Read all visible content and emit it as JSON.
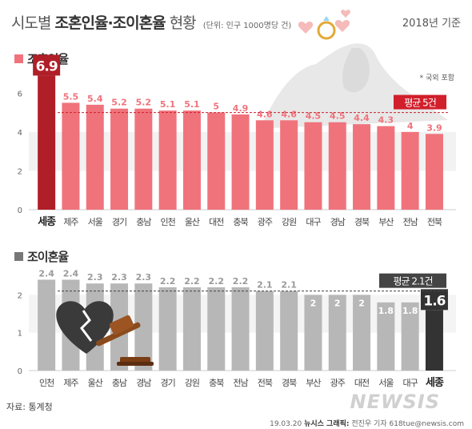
{
  "header": {
    "title_light": "시도별",
    "title_bold": "조혼인율·조이혼율",
    "title_tail": "현황",
    "unit": "(단위: 인구 1000명당 건)",
    "year": "2018년 기준"
  },
  "footer": {
    "source": "자료: 통계청",
    "date": "19.03.20",
    "agency": "뉴시스 그래픽:",
    "author": "전진우 기자 618tue@newsis.com",
    "logo": "NEWSIS"
  },
  "colors": {
    "marriage_bar": "#f0737c",
    "marriage_highlight": "#b01f28",
    "divorce_bar": "#b7b7b7",
    "divorce_highlight": "#333333",
    "avg_line": "#d11f2b"
  },
  "chart_data": [
    {
      "type": "bar",
      "section_label": "조혼인율",
      "note": "* 국외 포함",
      "categories": [
        "세종",
        "제주",
        "서울",
        "경기",
        "충남",
        "인천",
        "울산",
        "대전",
        "충북",
        "광주",
        "강원",
        "대구",
        "경남",
        "경북",
        "부산",
        "전남",
        "전북"
      ],
      "values": [
        6.9,
        5.5,
        5.4,
        5.2,
        5.2,
        5.1,
        5.1,
        5,
        4.9,
        4.6,
        4.6,
        4.5,
        4.5,
        4.4,
        4.3,
        4,
        3.9
      ],
      "value_labels": [
        "6.9",
        "5.5",
        "5.4",
        "5.2",
        "5.2",
        "5.1",
        "5.1",
        "5",
        "4.9",
        "4.6",
        "4.6",
        "4.5",
        "4.5",
        "4.4",
        "4.3",
        "4",
        "3.9"
      ],
      "highlight": "세종",
      "average": 5,
      "average_label": "평균 5건",
      "yticks": [
        "0",
        "2",
        "4",
        "6"
      ],
      "ylim": [
        0,
        7
      ]
    },
    {
      "type": "bar",
      "section_label": "조이혼율",
      "categories": [
        "인천",
        "제주",
        "울산",
        "충남",
        "경남",
        "경기",
        "강원",
        "충북",
        "전남",
        "전북",
        "경북",
        "부산",
        "광주",
        "대전",
        "서울",
        "대구",
        "세종"
      ],
      "values": [
        2.4,
        2.4,
        2.3,
        2.3,
        2.3,
        2.2,
        2.2,
        2.2,
        2.2,
        2.1,
        2.1,
        2,
        2,
        2,
        1.8,
        1.8,
        1.6
      ],
      "value_labels": [
        "2.4",
        "2.4",
        "2.3",
        "2.3",
        "2.3",
        "2.2",
        "2.2",
        "2.2",
        "2.2",
        "2.1",
        "2.1",
        "2",
        "2",
        "2",
        "1.8",
        "1.8",
        "1.6"
      ],
      "highlight": "세종",
      "average": 2.1,
      "average_label": "평균 2.1건",
      "yticks": [
        "0",
        "1",
        "2"
      ],
      "ylim": [
        0,
        2.6
      ]
    }
  ]
}
